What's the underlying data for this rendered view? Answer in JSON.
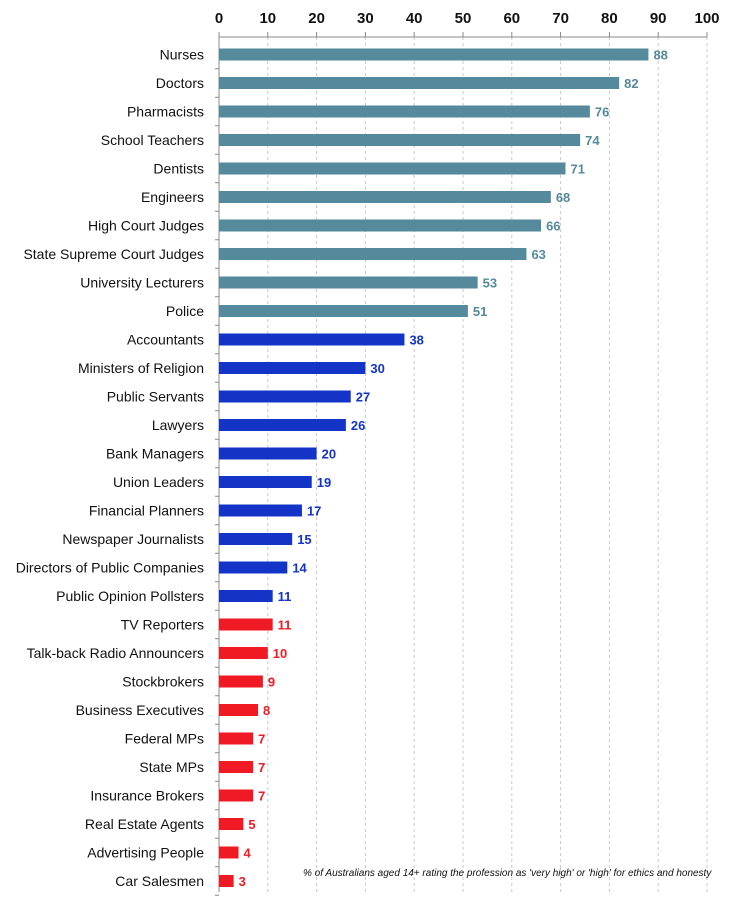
{
  "chart_data": {
    "type": "bar",
    "orientation": "horizontal",
    "categories": [
      "Nurses",
      "Doctors",
      "Pharmacists",
      "School Teachers",
      "Dentists",
      "Engineers",
      "High Court Judges",
      "State Supreme Court Judges",
      "University Lecturers",
      "Police",
      "Accountants",
      "Ministers of Religion",
      "Public Servants",
      "Lawyers",
      "Bank Managers",
      "Union Leaders",
      "Financial Planners",
      "Newspaper Journalists",
      "Directors of Public Companies",
      "Public Opinion Pollsters",
      "TV Reporters",
      "Talk-back Radio Announcers",
      "Stockbrokers",
      "Business Executives",
      "Federal MPs",
      "State MPs",
      "Insurance Brokers",
      "Real Estate Agents",
      "Advertising People",
      "Car Salesmen"
    ],
    "values": [
      88,
      82,
      76,
      74,
      71,
      68,
      66,
      63,
      53,
      51,
      38,
      30,
      27,
      26,
      20,
      19,
      17,
      15,
      14,
      11,
      11,
      10,
      9,
      8,
      7,
      7,
      7,
      5,
      4,
      3
    ],
    "value_labels": [
      "88",
      "82",
      "76",
      "74",
      "71",
      "68",
      "66",
      "63",
      "53",
      "51",
      "38",
      "30",
      "27",
      "26",
      "20",
      "19",
      "17",
      "15",
      "14",
      "11",
      "11",
      "10",
      "9",
      "8",
      "7",
      "7",
      "7",
      "5",
      "4",
      "3"
    ],
    "groups": [
      {
        "start": 0,
        "end": 9,
        "color": "#548a9b"
      },
      {
        "start": 10,
        "end": 19,
        "color": "#1434c8"
      },
      {
        "start": 20,
        "end": 29,
        "color": "#f01a24"
      }
    ],
    "xlim": [
      0,
      100
    ],
    "xticks": [
      "0",
      "10",
      "20",
      "30",
      "40",
      "50",
      "60",
      "70",
      "80",
      "90",
      "100"
    ],
    "x_axis_position": "top",
    "grid": "vertical dashed",
    "annotation": "% of Australians aged 14+ rating the profession as 'very high' or 'high' for ethics and honesty"
  }
}
